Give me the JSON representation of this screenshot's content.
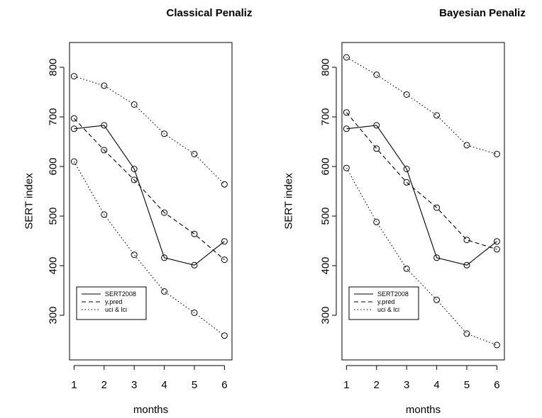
{
  "chart_data": [
    {
      "type": "line",
      "title": "Classical Penaliz",
      "xlabel": "months",
      "ylabel": "SERT index",
      "x": [
        1,
        2,
        3,
        4,
        5,
        6
      ],
      "xlim": [
        0.85,
        6.25
      ],
      "ylim": [
        210,
        850
      ],
      "yticks": [
        300,
        400,
        500,
        600,
        700,
        800
      ],
      "grid": false,
      "legend_position": "bottom-left",
      "series": [
        {
          "name": "SERT2008",
          "linestyle": "solid",
          "values": [
            676,
            683,
            595,
            416,
            401,
            449
          ]
        },
        {
          "name": "y.pred",
          "linestyle": "dashed",
          "values": [
            697,
            633,
            573,
            507,
            464,
            412
          ]
        },
        {
          "name": "uci & lci",
          "linestyle": "dotted",
          "values": [
            782,
            763,
            725,
            666,
            625,
            564
          ]
        },
        {
          "name": "",
          "linestyle": "dotted",
          "values": [
            610,
            503,
            422,
            348,
            305,
            259
          ]
        }
      ]
    },
    {
      "type": "line",
      "title": "Bayesian  Penaliz",
      "xlabel": "months",
      "ylabel": "SERT index",
      "x": [
        1,
        2,
        3,
        4,
        5,
        6
      ],
      "xlim": [
        0.85,
        6.25
      ],
      "ylim": [
        210,
        850
      ],
      "yticks": [
        300,
        400,
        500,
        600,
        700,
        800
      ],
      "grid": false,
      "legend_position": "bottom-left",
      "series": [
        {
          "name": "SERT2008",
          "linestyle": "solid",
          "values": [
            676,
            683,
            595,
            416,
            401,
            449
          ]
        },
        {
          "name": "y.pred",
          "linestyle": "dashed",
          "values": [
            709,
            636,
            568,
            517,
            452,
            433
          ]
        },
        {
          "name": "uci & lci",
          "linestyle": "dotted",
          "values": [
            820,
            785,
            745,
            703,
            643,
            625
          ]
        },
        {
          "name": "",
          "linestyle": "dotted",
          "values": [
            597,
            488,
            394,
            331,
            263,
            240
          ]
        }
      ]
    }
  ]
}
